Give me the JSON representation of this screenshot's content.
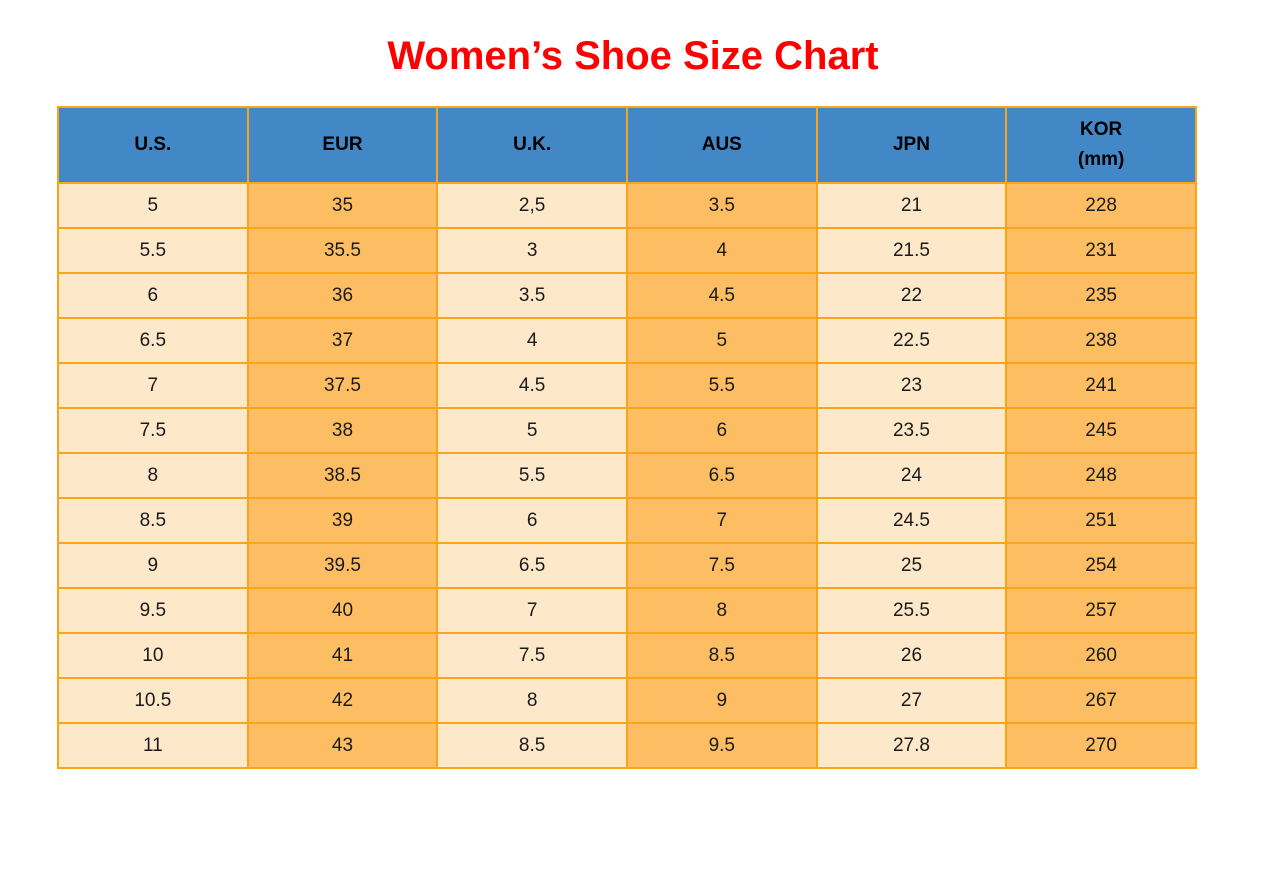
{
  "colors": {
    "page_bg": "#FFFFFF",
    "title": "#FF0000",
    "header_bg": "#4288C6",
    "header_text": "#000000",
    "cell_text": "#1A1A1A",
    "stripe_light": "#FEE8CA",
    "stripe_orange": "#FDBE63",
    "grid_border": "#FAA41A"
  },
  "chart_data": {
    "type": "table",
    "title": "Women’s Shoe Size Chart",
    "columns": [
      "U.S.",
      "EUR",
      "U.K.",
      "AUS",
      "JPN",
      "KOR\n(mm)"
    ],
    "column_keys": [
      "us",
      "eur",
      "uk",
      "aus",
      "jpn",
      "kor-mm"
    ],
    "column_striping": [
      "light",
      "orange",
      "light",
      "orange",
      "light",
      "orange"
    ],
    "rows": [
      [
        "5",
        "35",
        "2,5",
        "3.5",
        "21",
        "228"
      ],
      [
        "5.5",
        "35.5",
        "3",
        "4",
        "21.5",
        "231"
      ],
      [
        "6",
        "36",
        "3.5",
        "4.5",
        "22",
        "235"
      ],
      [
        "6.5",
        "37",
        "4",
        "5",
        "22.5",
        "238"
      ],
      [
        "7",
        "37.5",
        "4.5",
        "5.5",
        "23",
        "241"
      ],
      [
        "7.5",
        "38",
        "5",
        "6",
        "23.5",
        "245"
      ],
      [
        "8",
        "38.5",
        "5.5",
        "6.5",
        "24",
        "248"
      ],
      [
        "8.5",
        "39",
        "6",
        "7",
        "24.5",
        "251"
      ],
      [
        "9",
        "39.5",
        "6.5",
        "7.5",
        "25",
        "254"
      ],
      [
        "9.5",
        "40",
        "7",
        "8",
        "25.5",
        "257"
      ],
      [
        "10",
        "41",
        "7.5",
        "8.5",
        "26",
        "260"
      ],
      [
        "10.5",
        "42",
        "8",
        "9",
        "27",
        "267"
      ],
      [
        "11",
        "43",
        "8.5",
        "9.5",
        "27.8",
        "270"
      ]
    ],
    "grid": "on",
    "legend": "none"
  }
}
